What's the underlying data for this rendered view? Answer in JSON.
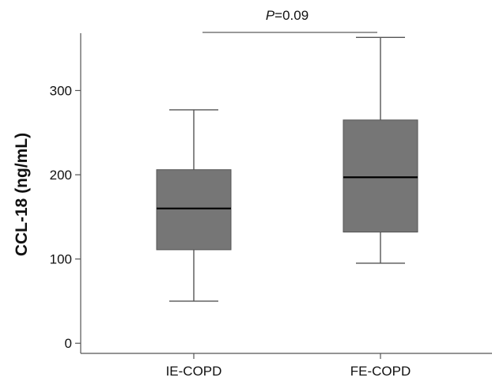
{
  "chart_data": {
    "type": "box",
    "categories": [
      "IE-COPD",
      "FE-COPD"
    ],
    "series": [
      {
        "category": "IE-COPD",
        "whisker_low": 50,
        "q1": 111,
        "median": 160,
        "q3": 206,
        "whisker_high": 277
      },
      {
        "category": "FE-COPD",
        "whisker_low": 95,
        "q1": 132,
        "median": 197,
        "q3": 265,
        "whisker_high": 363
      }
    ],
    "ylabel": "CCL-18 (ng/mL)",
    "xlabel": "",
    "yticks": [
      0,
      100,
      200,
      300
    ],
    "ylim": [
      -12,
      368
    ],
    "annotation": {
      "p_symbol": "P",
      "p_text": "=0.09",
      "between": [
        "IE-COPD",
        "FE-COPD"
      ]
    },
    "colors": {
      "box_fill": "#767676",
      "box_stroke": "#555555",
      "median": "#000000",
      "axis": "#555555"
    }
  }
}
